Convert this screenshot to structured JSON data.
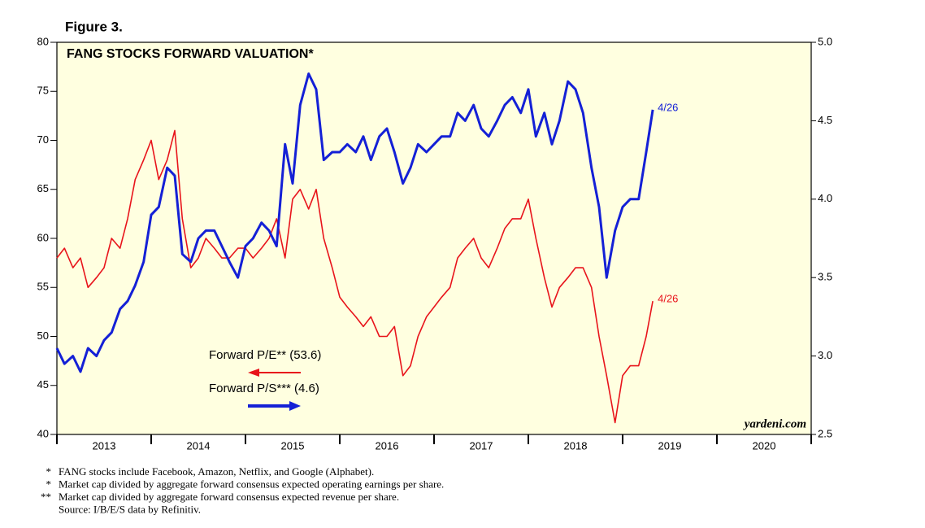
{
  "chart_data": {
    "type": "line",
    "figure_label": "Figure 3.",
    "title": "FANG STOCKS FORWARD VALUATION*",
    "watermark": "yardeni.com",
    "xlim": [
      2013,
      2021
    ],
    "xticks": [
      {
        "value": 2013.5,
        "label": "2013"
      },
      {
        "value": 2014.5,
        "label": "2014"
      },
      {
        "value": 2015.5,
        "label": "2015"
      },
      {
        "value": 2016.5,
        "label": "2016"
      },
      {
        "value": 2017.5,
        "label": "2017"
      },
      {
        "value": 2018.5,
        "label": "2018"
      },
      {
        "value": 2019.5,
        "label": "2019"
      },
      {
        "value": 2020.5,
        "label": "2020"
      }
    ],
    "ylim": [
      40,
      80
    ],
    "yticks": [
      40,
      45,
      50,
      55,
      60,
      65,
      70,
      75,
      80
    ],
    "y2lim": [
      2.5,
      5.0
    ],
    "y2ticks": [
      2.5,
      {
        "value": 3.0,
        "label": "3.0"
      },
      3.5,
      {
        "value": 4.0,
        "label": "4.0"
      },
      4.5,
      {
        "value": 5.0,
        "label": "5.0"
      }
    ],
    "x": [
      2013.0,
      2013.08,
      2013.17,
      2013.25,
      2013.33,
      2013.42,
      2013.5,
      2013.58,
      2013.67,
      2013.75,
      2013.83,
      2013.92,
      2014.0,
      2014.08,
      2014.17,
      2014.25,
      2014.33,
      2014.42,
      2014.5,
      2014.58,
      2014.67,
      2014.75,
      2014.83,
      2014.92,
      2015.0,
      2015.08,
      2015.17,
      2015.25,
      2015.33,
      2015.42,
      2015.5,
      2015.58,
      2015.67,
      2015.75,
      2015.83,
      2015.92,
      2016.0,
      2016.08,
      2016.17,
      2016.25,
      2016.33,
      2016.42,
      2016.5,
      2016.58,
      2016.67,
      2016.75,
      2016.83,
      2016.92,
      2017.0,
      2017.08,
      2017.17,
      2017.25,
      2017.33,
      2017.42,
      2017.5,
      2017.58,
      2017.67,
      2017.75,
      2017.83,
      2017.92,
      2018.0,
      2018.08,
      2018.17,
      2018.25,
      2018.33,
      2018.42,
      2018.5,
      2018.58,
      2018.67,
      2018.75,
      2018.83,
      2018.92,
      2019.0,
      2019.08,
      2019.17,
      2019.25,
      2019.32
    ],
    "series": [
      {
        "name": "Forward P/E** (53.6)",
        "color": "#e8141b",
        "end_label": "4/26",
        "values": [
          58,
          59,
          57,
          58,
          55,
          56,
          57,
          60,
          59,
          62,
          66,
          68,
          70,
          66,
          68,
          71,
          62,
          57,
          58,
          60,
          59,
          58,
          58,
          59,
          59,
          58,
          59,
          60,
          62,
          58,
          64,
          65,
          63,
          65,
          60,
          57,
          54,
          53,
          52,
          51,
          52,
          50,
          50,
          51,
          46,
          47,
          50,
          52,
          53,
          54,
          55,
          58,
          59,
          60,
          58,
          57,
          59,
          61,
          62,
          62,
          64,
          60,
          56,
          53,
          55,
          56,
          57,
          57,
          55,
          50,
          46,
          41.2,
          46,
          47,
          47,
          50,
          53.6
        ]
      },
      {
        "name": "Forward P/S*** (4.6)",
        "color": "#1420d6",
        "axis": "y2",
        "end_label": "4/26",
        "values": [
          3.05,
          2.95,
          3.0,
          2.9,
          3.05,
          3.0,
          3.1,
          3.15,
          3.3,
          3.35,
          3.45,
          3.6,
          3.9,
          3.95,
          4.2,
          4.15,
          3.65,
          3.6,
          3.75,
          3.8,
          3.8,
          3.7,
          3.6,
          3.5,
          3.7,
          3.75,
          3.85,
          3.8,
          3.7,
          4.35,
          4.1,
          4.6,
          4.8,
          4.7,
          4.25,
          4.3,
          4.3,
          4.35,
          4.3,
          4.4,
          4.25,
          4.4,
          4.45,
          4.3,
          4.1,
          4.2,
          4.35,
          4.3,
          4.35,
          4.4,
          4.4,
          4.55,
          4.5,
          4.6,
          4.45,
          4.4,
          4.5,
          4.6,
          4.65,
          4.55,
          4.7,
          4.4,
          4.55,
          4.35,
          4.5,
          4.75,
          4.7,
          4.55,
          4.2,
          3.95,
          3.5,
          3.8,
          3.95,
          4.0,
          4.0,
          4.3,
          4.57
        ]
      }
    ],
    "footnotes": [
      {
        "mark": "*",
        "text": "FANG stocks include Facebook, Amazon, Netflix, and Google (Alphabet)."
      },
      {
        "mark": "*",
        "text": "Market cap divided by aggregate forward consensus expected operating earnings per share."
      },
      {
        "mark": "**",
        "text": "Market cap divided by aggregate forward consensus expected revenue per share."
      },
      {
        "text": "Source: I/B/E/S data by Refinitiv."
      }
    ]
  }
}
